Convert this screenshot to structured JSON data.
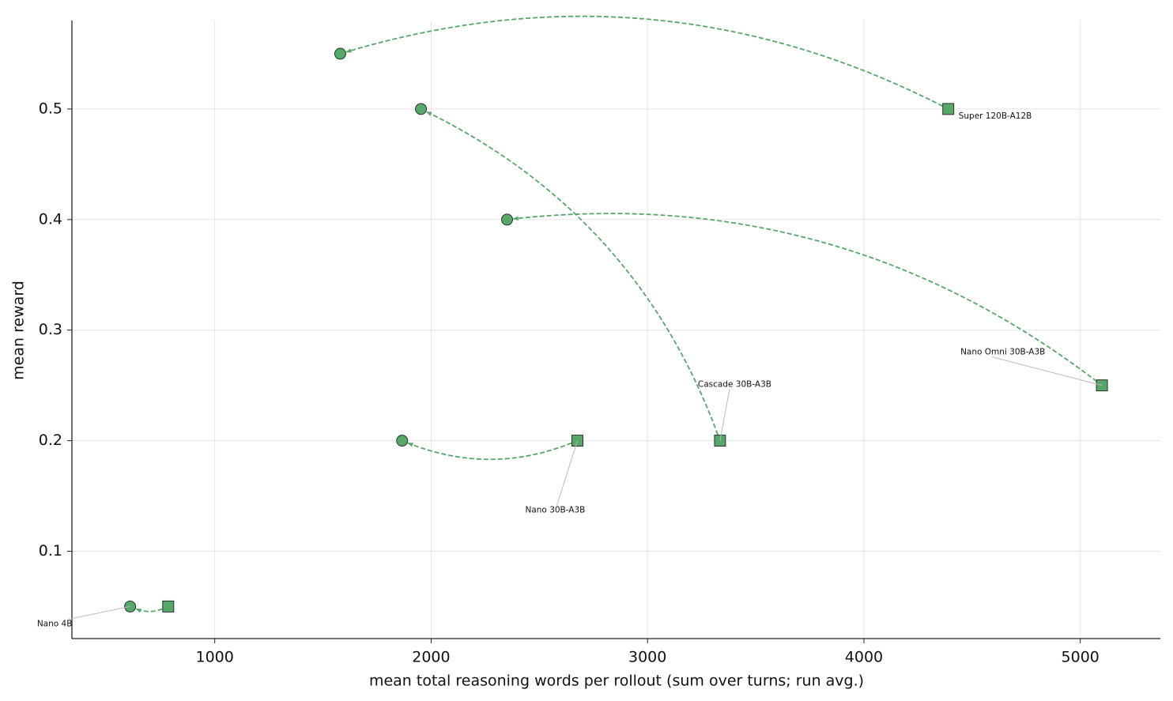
{
  "chart_data": {
    "type": "scatter",
    "xlabel": "mean total reasoning words per rollout (sum over turns; run avg.)",
    "ylabel": "mean reward",
    "xlim": [
      340,
      5370
    ],
    "ylim": [
      0.021,
      0.58
    ],
    "xticks": [
      1000,
      2000,
      3000,
      4000,
      5000
    ],
    "yticks": [
      0.1,
      0.2,
      0.3,
      0.4,
      0.5
    ],
    "grid": true,
    "color": "#55a868",
    "series": [
      {
        "name": "Super 120B-A12B",
        "x": [
          4390,
          1580
        ],
        "values": [
          0.5,
          0.55
        ]
      },
      {
        "name": "Cascade 30B-A3B",
        "x": [
          3335,
          1953
        ],
        "values": [
          0.2,
          0.5
        ]
      },
      {
        "name": "Nano Omni 30B-A3B",
        "x": [
          5100,
          2351
        ],
        "values": [
          0.25,
          0.4
        ]
      },
      {
        "name": "Nano 30B-A3B",
        "x": [
          2676,
          1866
        ],
        "values": [
          0.2,
          0.2
        ]
      },
      {
        "name": "Nano 4B",
        "x": [
          785,
          609
        ],
        "values": [
          0.05,
          0.05
        ]
      }
    ]
  }
}
